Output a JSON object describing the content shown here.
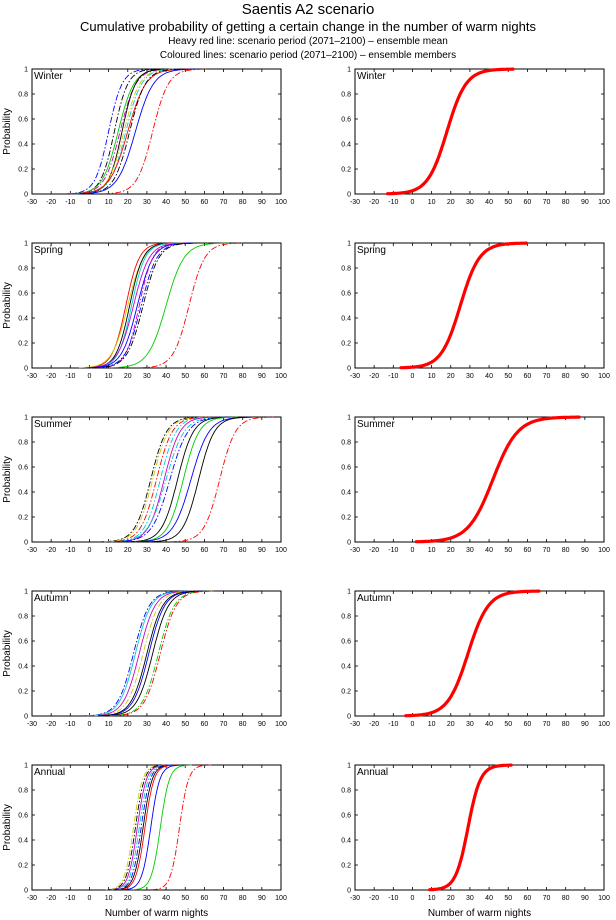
{
  "header": {
    "title": "Saentis A2 scenario",
    "subtitle": "Cumulative probability of getting a certain change in the number of warm nights",
    "note1": "Heavy red line: scenario period (2071–2100) – ensemble mean",
    "note2": "Coloured lines: scenario period (2071–2100) – ensemble members"
  },
  "colors": {
    "mean": "#ff0000",
    "members": [
      "#0000ff",
      "#00cc00",
      "#ff0000",
      "#00cccc",
      "#cc00cc",
      "#cccc00",
      "#000000"
    ]
  },
  "chart_data": {
    "type": "line",
    "xlabel": "Number of warm nights",
    "ylabel": "Probability",
    "xlim": [
      -30,
      100
    ],
    "ylim": [
      0,
      1
    ],
    "xticks": [
      "-30",
      "-20",
      "-10",
      "0",
      "10",
      "20",
      "30",
      "40",
      "50",
      "60",
      "70",
      "80",
      "90",
      "100"
    ],
    "yticks": [
      "0",
      "0.2",
      "0.4",
      "0.6",
      "0.8",
      "1"
    ],
    "panels": [
      {
        "season": "Winter",
        "mean": {
          "median": 18,
          "spread": 8.5
        },
        "members": [
          {
            "median": 10,
            "spread": 6,
            "color": "#0000ff",
            "dash": "dashdot"
          },
          {
            "median": 13,
            "spread": 6,
            "color": "#000000",
            "dash": "dashdot"
          },
          {
            "median": 15,
            "spread": 7,
            "color": "#00cc00",
            "dash": "solid"
          },
          {
            "median": 16,
            "spread": 7,
            "color": "#cc00cc",
            "dash": "dashdot"
          },
          {
            "median": 17,
            "spread": 6,
            "color": "#000000",
            "dash": "solid"
          },
          {
            "median": 18,
            "spread": 7,
            "color": "#cccc00",
            "dash": "dashdot"
          },
          {
            "median": 19,
            "spread": 7,
            "color": "#00cccc",
            "dash": "dashdot"
          },
          {
            "median": 20,
            "spread": 8,
            "color": "#ff0000",
            "dash": "solid"
          },
          {
            "median": 21,
            "spread": 7,
            "color": "#000000",
            "dash": "dashdot"
          },
          {
            "median": 24,
            "spread": 8,
            "color": "#0000ff",
            "dash": "solid"
          },
          {
            "median": 33,
            "spread": 7,
            "color": "#ff0000",
            "dash": "dashdot"
          }
        ]
      },
      {
        "season": "Spring",
        "mean": {
          "median": 25,
          "spread": 8.5
        },
        "members": [
          {
            "median": 19,
            "spread": 6,
            "color": "#ff0000",
            "dash": "solid"
          },
          {
            "median": 20,
            "spread": 7,
            "color": "#cccc00",
            "dash": "solid"
          },
          {
            "median": 21,
            "spread": 6,
            "color": "#000000",
            "dash": "solid"
          },
          {
            "median": 22,
            "spread": 6,
            "color": "#00cccc",
            "dash": "solid"
          },
          {
            "median": 23,
            "spread": 7,
            "color": "#cc00cc",
            "dash": "solid"
          },
          {
            "median": 25,
            "spread": 7,
            "color": "#0000ff",
            "dash": "solid"
          },
          {
            "median": 26,
            "spread": 6,
            "color": "#cc00cc",
            "dash": "dashdot"
          },
          {
            "median": 27,
            "spread": 7,
            "color": "#0000ff",
            "dash": "dashdot"
          },
          {
            "median": 28,
            "spread": 7,
            "color": "#000000",
            "dash": "dashdot"
          },
          {
            "median": 40,
            "spread": 8,
            "color": "#00cc00",
            "dash": "solid"
          },
          {
            "median": 52,
            "spread": 7,
            "color": "#ff0000",
            "dash": "dashdot"
          }
        ]
      },
      {
        "season": "Summer",
        "mean": {
          "median": 42,
          "spread": 11
        },
        "members": [
          {
            "median": 32,
            "spread": 7,
            "color": "#000000",
            "dash": "dashdot"
          },
          {
            "median": 33,
            "spread": 7,
            "color": "#cccc00",
            "dash": "dashdot"
          },
          {
            "median": 35,
            "spread": 7,
            "color": "#ff0000",
            "dash": "dashdot"
          },
          {
            "median": 37,
            "spread": 7,
            "color": "#00cccc",
            "dash": "dashdot"
          },
          {
            "median": 39,
            "spread": 7,
            "color": "#cc00cc",
            "dash": "solid"
          },
          {
            "median": 40,
            "spread": 8,
            "color": "#00cccc",
            "dash": "dashdot"
          },
          {
            "median": 42,
            "spread": 8,
            "color": "#0000ff",
            "dash": "dashdot"
          },
          {
            "median": 46,
            "spread": 7,
            "color": "#000000",
            "dash": "solid"
          },
          {
            "median": 49,
            "spread": 7,
            "color": "#00cc00",
            "dash": "solid"
          },
          {
            "median": 53,
            "spread": 8,
            "color": "#0000ff",
            "dash": "solid"
          },
          {
            "median": 57,
            "spread": 7,
            "color": "#000000",
            "dash": "solid"
          },
          {
            "median": 68,
            "spread": 7,
            "color": "#ff0000",
            "dash": "dashdot"
          }
        ]
      },
      {
        "season": "Autumn",
        "mean": {
          "median": 29,
          "spread": 9
        },
        "members": [
          {
            "median": 23,
            "spread": 7,
            "color": "#0000ff",
            "dash": "dashdot"
          },
          {
            "median": 24,
            "spread": 7,
            "color": "#00cccc",
            "dash": "solid"
          },
          {
            "median": 26,
            "spread": 7,
            "color": "#cc00cc",
            "dash": "solid"
          },
          {
            "median": 28,
            "spread": 7,
            "color": "#cccc00",
            "dash": "dashdot"
          },
          {
            "median": 30,
            "spread": 7,
            "color": "#000000",
            "dash": "solid"
          },
          {
            "median": 31,
            "spread": 7,
            "color": "#0000ff",
            "dash": "solid"
          },
          {
            "median": 33,
            "spread": 7,
            "color": "#000000",
            "dash": "solid"
          },
          {
            "median": 36,
            "spread": 7,
            "color": "#00cc00",
            "dash": "dashdot"
          },
          {
            "median": 37,
            "spread": 7,
            "color": "#ff0000",
            "dash": "dashdot"
          }
        ]
      },
      {
        "season": "Annual",
        "mean": {
          "median": 29,
          "spread": 5.5
        },
        "members": [
          {
            "median": 23,
            "spread": 4,
            "color": "#cccc00",
            "dash": "dashdot"
          },
          {
            "median": 24,
            "spread": 4,
            "color": "#000000",
            "dash": "dashdot"
          },
          {
            "median": 25,
            "spread": 4,
            "color": "#cc00cc",
            "dash": "solid"
          },
          {
            "median": 26,
            "spread": 4,
            "color": "#00cccc",
            "dash": "dashdot"
          },
          {
            "median": 27,
            "spread": 4,
            "color": "#0000ff",
            "dash": "dashdot"
          },
          {
            "median": 28,
            "spread": 4,
            "color": "#000000",
            "dash": "solid"
          },
          {
            "median": 29,
            "spread": 4,
            "color": "#ff0000",
            "dash": "solid"
          },
          {
            "median": 32,
            "spread": 4,
            "color": "#0000ff",
            "dash": "solid"
          },
          {
            "median": 37,
            "spread": 4,
            "color": "#00cc00",
            "dash": "solid"
          },
          {
            "median": 47,
            "spread": 4,
            "color": "#ff0000",
            "dash": "dashdot"
          }
        ]
      }
    ]
  }
}
